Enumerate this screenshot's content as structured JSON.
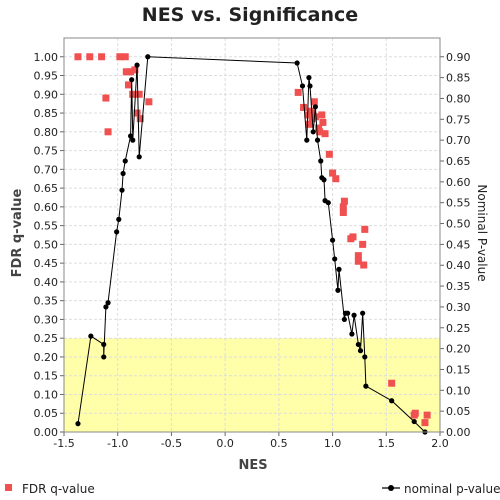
{
  "chart_data": {
    "type": "scatter",
    "title": "NES vs. Significance",
    "xlabel": "NES",
    "ylabel_left": "FDR q-value",
    "ylabel_right": "Nominal P-value",
    "xlim": [
      -1.5,
      2.0
    ],
    "ylim_left": [
      0.0,
      1.05
    ],
    "ylim_right": [
      0.0,
      0.945
    ],
    "x_ticks": [
      "-1.5",
      "-1.0",
      "-0.5",
      "0.0",
      "0.5",
      "1.0",
      "1.5",
      "2.0"
    ],
    "y_left_ticks": [
      "0.00",
      "0.05",
      "0.10",
      "0.15",
      "0.20",
      "0.25",
      "0.30",
      "0.35",
      "0.40",
      "0.45",
      "0.50",
      "0.55",
      "0.60",
      "0.65",
      "0.70",
      "0.75",
      "0.80",
      "0.85",
      "0.90",
      "0.95",
      "1.00"
    ],
    "y_right_ticks": [
      "0.00",
      "0.05",
      "0.10",
      "0.15",
      "0.20",
      "0.25",
      "0.30",
      "0.35",
      "0.40",
      "0.45",
      "0.50",
      "0.55",
      "0.60",
      "0.65",
      "0.70",
      "0.75",
      "0.80",
      "0.85",
      "0.90"
    ],
    "highlight_region": {
      "y_from": 0.0,
      "y_to": 0.25,
      "color": "#ffffaa"
    },
    "grid": true,
    "legend_position": "bottom",
    "series": [
      {
        "name": "FDR q-value",
        "axis": "left",
        "style": "square",
        "color": "#f05050",
        "points": [
          [
            -1.37,
            1.0
          ],
          [
            -1.26,
            1.0
          ],
          [
            -1.15,
            1.0
          ],
          [
            -0.98,
            1.0
          ],
          [
            -0.93,
            1.0
          ],
          [
            -0.92,
            0.96
          ],
          [
            -0.88,
            0.96
          ],
          [
            -0.84,
            0.965
          ],
          [
            -0.9,
            0.925
          ],
          [
            -1.11,
            0.89
          ],
          [
            -0.86,
            0.9
          ],
          [
            -0.8,
            0.9
          ],
          [
            -0.71,
            0.88
          ],
          [
            -0.82,
            0.85
          ],
          [
            -0.79,
            0.835
          ],
          [
            -1.09,
            0.8
          ],
          [
            0.68,
            0.905
          ],
          [
            0.73,
            0.865
          ],
          [
            0.77,
            0.845
          ],
          [
            0.78,
            0.82
          ],
          [
            0.8,
            0.855
          ],
          [
            0.81,
            0.835
          ],
          [
            0.83,
            0.88
          ],
          [
            0.84,
            0.84
          ],
          [
            0.87,
            0.81
          ],
          [
            0.88,
            0.8
          ],
          [
            0.9,
            0.845
          ],
          [
            0.91,
            0.825
          ],
          [
            0.93,
            0.795
          ],
          [
            0.97,
            0.74
          ],
          [
            1.0,
            0.69
          ],
          [
            1.03,
            0.675
          ],
          [
            1.1,
            0.6
          ],
          [
            1.11,
            0.615
          ],
          [
            1.1,
            0.585
          ],
          [
            1.17,
            0.515
          ],
          [
            1.19,
            0.52
          ],
          [
            1.24,
            0.47
          ],
          [
            1.24,
            0.455
          ],
          [
            1.28,
            0.5
          ],
          [
            1.3,
            0.54
          ],
          [
            1.29,
            0.445
          ],
          [
            1.55,
            0.13
          ],
          [
            1.77,
            0.05
          ],
          [
            1.76,
            0.045
          ],
          [
            1.88,
            0.045
          ],
          [
            1.86,
            0.025
          ]
        ]
      },
      {
        "name": "nominal p-value",
        "axis": "right",
        "style": "line-dot",
        "color": "#000000",
        "points": [
          [
            -1.37,
            0.02
          ],
          [
            -1.25,
            0.23
          ],
          [
            -1.13,
            0.21
          ],
          [
            -1.13,
            0.18
          ],
          [
            -1.11,
            0.3
          ],
          [
            -1.09,
            0.31
          ],
          [
            -1.01,
            0.48
          ],
          [
            -0.99,
            0.51
          ],
          [
            -0.96,
            0.58
          ],
          [
            -0.95,
            0.62
          ],
          [
            -0.93,
            0.65
          ],
          [
            -0.88,
            0.71
          ],
          [
            -0.87,
            0.845
          ],
          [
            -0.86,
            0.7
          ],
          [
            -0.82,
            0.88
          ],
          [
            -0.8,
            0.66
          ],
          [
            -0.72,
            0.9
          ],
          [
            0.67,
            0.885
          ],
          [
            0.72,
            0.83
          ],
          [
            0.76,
            0.7
          ],
          [
            0.78,
            0.85
          ],
          [
            0.79,
            0.83
          ],
          [
            0.82,
            0.72
          ],
          [
            0.84,
            0.78
          ],
          [
            0.86,
            0.7
          ],
          [
            0.89,
            0.65
          ],
          [
            0.9,
            0.61
          ],
          [
            0.92,
            0.605
          ],
          [
            0.93,
            0.555
          ],
          [
            0.96,
            0.55
          ],
          [
            1.0,
            0.46
          ],
          [
            1.02,
            0.415
          ],
          [
            1.05,
            0.34
          ],
          [
            1.06,
            0.39
          ],
          [
            1.11,
            0.27
          ],
          [
            1.12,
            0.285
          ],
          [
            1.14,
            0.285
          ],
          [
            1.18,
            0.235
          ],
          [
            1.2,
            0.28
          ],
          [
            1.24,
            0.21
          ],
          [
            1.26,
            0.195
          ],
          [
            1.28,
            0.285
          ],
          [
            1.3,
            0.18
          ],
          [
            1.31,
            0.11
          ],
          [
            1.55,
            0.075
          ],
          [
            1.76,
            0.025
          ],
          [
            1.86,
            0.0
          ]
        ]
      }
    ]
  }
}
